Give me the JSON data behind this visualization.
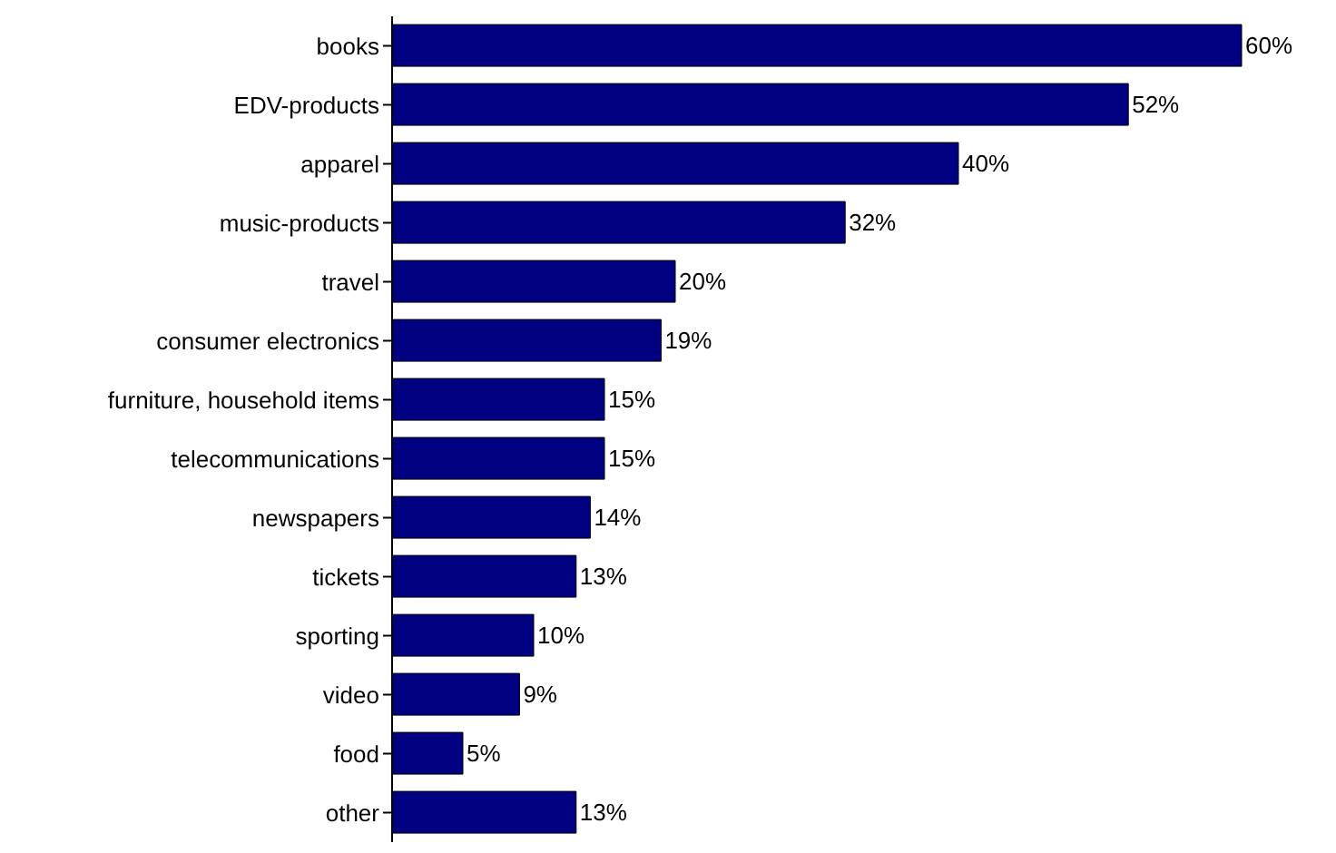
{
  "chart_data": {
    "type": "bar",
    "orientation": "horizontal",
    "categories": [
      "books",
      "EDV-products",
      "apparel",
      "music-products",
      "travel",
      "consumer electronics",
      "furniture, household items",
      "telecommunications",
      "newspapers",
      "tickets",
      "sporting",
      "video",
      "food",
      "other"
    ],
    "values": [
      60,
      52,
      40,
      32,
      20,
      19,
      15,
      15,
      14,
      13,
      10,
      9,
      5,
      13
    ],
    "value_labels": [
      "60%",
      "52%",
      "40%",
      "32%",
      "20%",
      "19%",
      "15%",
      "15%",
      "14%",
      "13%",
      "10%",
      "9%",
      "5%",
      "13%"
    ],
    "color": "#000080"
  }
}
